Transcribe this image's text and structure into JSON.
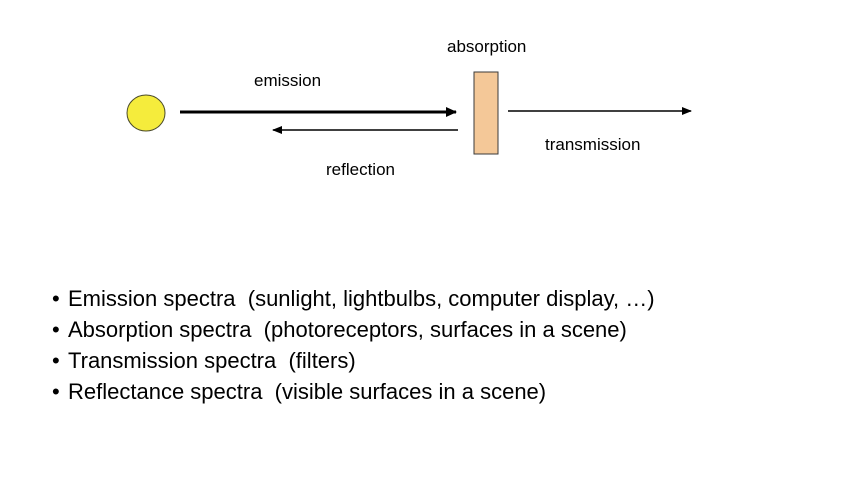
{
  "diagram": {
    "labels": {
      "absorption": "absorption",
      "emission": "emission",
      "reflection": "reflection",
      "transmission": "transmission"
    },
    "colors": {
      "source_fill": "#f5ec3c",
      "source_stroke": "#4a4a2a",
      "surface_fill": "#f4c898",
      "surface_stroke": "#3a3a3a",
      "arrow": "#000000"
    }
  },
  "bullets": [
    {
      "term": "Emission spectra",
      "detail": "(sunlight, lightbulbs,  computer display, …)"
    },
    {
      "term": "Absorption spectra",
      "detail": "(photoreceptors,  surfaces in a scene)"
    },
    {
      "term": "Transmission spectra",
      "detail": "(filters)"
    },
    {
      "term": "Reflectance spectra",
      "detail": "(visible surfaces in a scene)"
    }
  ],
  "bullet_symbol": "•"
}
